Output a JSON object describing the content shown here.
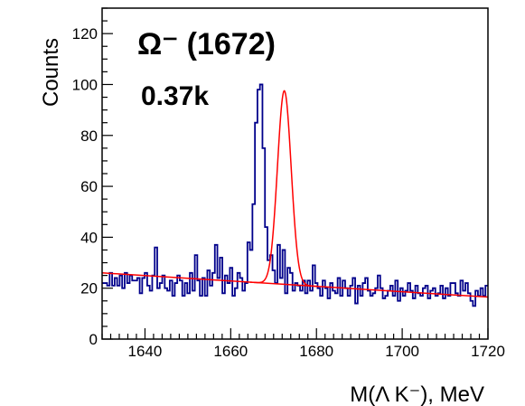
{
  "chart_data": {
    "type": "histogram",
    "title": "",
    "xlabel": "M(Λ K⁻), MeV",
    "ylabel": "Counts",
    "xlim": [
      1630,
      1720
    ],
    "ylim": [
      0,
      130
    ],
    "x_ticks": [
      1640,
      1660,
      1680,
      1700,
      1720
    ],
    "y_ticks": [
      0,
      20,
      40,
      60,
      80,
      100,
      120
    ],
    "grid": false,
    "annotations": [
      {
        "text": "Ω⁻ (1672)"
      },
      {
        "text": "0.37k"
      }
    ],
    "series": [
      {
        "kind": "histogram",
        "color": "#00008b",
        "bin_width": 1,
        "x_start": 1630,
        "values": [
          22,
          22,
          21,
          26,
          21,
          24,
          21,
          25,
          20,
          26,
          22,
          25,
          23,
          23,
          24,
          18,
          24,
          26,
          21,
          19,
          25,
          36,
          20,
          22,
          25,
          20,
          19,
          23,
          17,
          22,
          25,
          23,
          17,
          22,
          18,
          26,
          19,
          33,
          23,
          17,
          24,
          17,
          27,
          21,
          26,
          37,
          24,
          32,
          18,
          25,
          22,
          28,
          17,
          20,
          26,
          24,
          19,
          22,
          38,
          35,
          53,
          85,
          98,
          100,
          75,
          44,
          31,
          33,
          27,
          22,
          37,
          24,
          35,
          18,
          28,
          26,
          19,
          22,
          21,
          19,
          23,
          18,
          23,
          19,
          29,
          22,
          20,
          17,
          23,
          20,
          16,
          22,
          19,
          18,
          24,
          17,
          23,
          20,
          17,
          21,
          24,
          14,
          21,
          17,
          22,
          24,
          19,
          17,
          18,
          20,
          25,
          20,
          16,
          17,
          19,
          21,
          17,
          23,
          15,
          20,
          17,
          19,
          22,
          19,
          16,
          21,
          18,
          17,
          20,
          21,
          16,
          19,
          20,
          17,
          18,
          21,
          16,
          20,
          17,
          22,
          22,
          18,
          17,
          23,
          19,
          22,
          18,
          15,
          13,
          19,
          17,
          20,
          17,
          21
        ]
      },
      {
        "kind": "fit",
        "color": "#ff0000",
        "background_line": {
          "x": [
            1630,
            1720
          ],
          "y": [
            26,
            16.5
          ]
        },
        "peak_center": 1672.5,
        "peak_amplitude": 76,
        "peak_sigma": 1.6
      }
    ]
  }
}
